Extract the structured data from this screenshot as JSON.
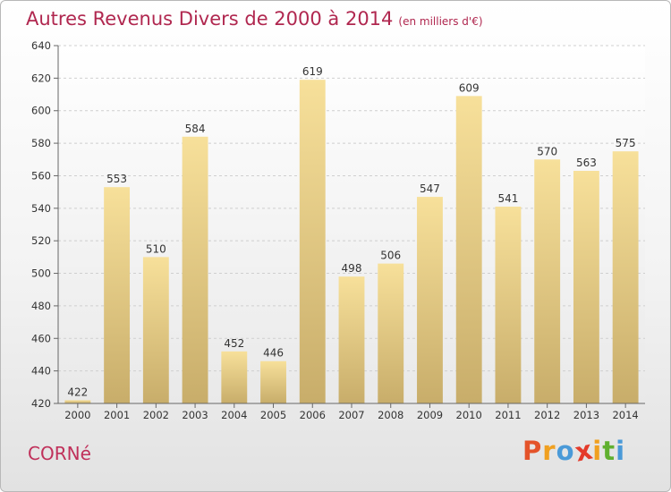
{
  "chart_data": {
    "type": "bar",
    "title": "Autres Revenus Divers de 2000 à 2014",
    "subtitle": "(en milliers d'€)",
    "categories": [
      "2000",
      "2001",
      "2002",
      "2003",
      "2004",
      "2005",
      "2006",
      "2007",
      "2008",
      "2009",
      "2010",
      "2011",
      "2012",
      "2013",
      "2014"
    ],
    "values": [
      422,
      553,
      510,
      584,
      452,
      446,
      619,
      498,
      506,
      547,
      609,
      541,
      570,
      563,
      575
    ],
    "ylim": [
      420,
      640
    ],
    "yticks": [
      420,
      440,
      460,
      480,
      500,
      520,
      540,
      560,
      580,
      600,
      620,
      640
    ],
    "grid": true,
    "bar_colors": {
      "top": "#f7e09a",
      "bottom": "#c8ad6a"
    }
  },
  "footer": {
    "commune": "CORNé",
    "brand_letters": [
      "P",
      "r",
      "o",
      "x",
      "i",
      "t",
      "i"
    ],
    "brand_colors": [
      "#e4532a",
      "#f0a020",
      "#4a9ad8",
      "#e43a2a",
      "#f0a020",
      "#60b030",
      "#4a9ad8"
    ]
  }
}
